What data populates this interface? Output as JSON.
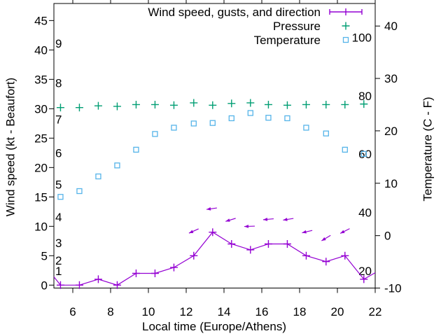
{
  "figure": {
    "background": "#ffffff",
    "axis_color": "#000000",
    "legend": {
      "position": "top-right",
      "items": [
        {
          "label": "Wind speed, gusts, and direction",
          "symbol": "errorbar-plus",
          "color": "#9400d3"
        },
        {
          "label": "Pressure",
          "symbol": "plus",
          "color": "#009e73"
        },
        {
          "label": "Temperature",
          "symbol": "open-square",
          "color": "#56b4e9"
        }
      ]
    }
  },
  "chart_data": {
    "type": "line",
    "title": "",
    "xlabel": "Local time (Europe/Athens)",
    "ylabel_left": "Wind speed (kt - Beaufort)",
    "ylabel_right": "Temperature (C - F)",
    "grid": false,
    "xlim": [
      5,
      22
    ],
    "x_ticks": [
      6,
      8,
      10,
      12,
      14,
      16,
      18,
      20,
      22
    ],
    "ylim_left": [
      -0.5,
      47.9
    ],
    "y_ticks_left": [
      0,
      5,
      10,
      15,
      20,
      25,
      30,
      35,
      40,
      45
    ],
    "ylim_right": [
      -10,
      44.3
    ],
    "y_ticks_right": [
      -10,
      0,
      10,
      20,
      30,
      40
    ],
    "beaufort_scale_labels": [
      {
        "label": "1",
        "kt": 2.4
      },
      {
        "label": "2",
        "kt": 4.2
      },
      {
        "label": "3",
        "kt": 7.2
      },
      {
        "label": "4",
        "kt": 11.6
      },
      {
        "label": "5",
        "kt": 17.1
      },
      {
        "label": "6",
        "kt": 22.5
      },
      {
        "label": "7",
        "kt": 28.2
      },
      {
        "label": "8",
        "kt": 34.4
      },
      {
        "label": "9",
        "kt": 41.1
      }
    ],
    "fahrenheit_scale_labels": [
      {
        "label": "20",
        "celsius": -6.7
      },
      {
        "label": "40",
        "celsius": 4.4
      },
      {
        "label": "60",
        "celsius": 15.6
      },
      {
        "label": "80",
        "celsius": 26.7
      },
      {
        "label": "100",
        "celsius": 37.8
      }
    ],
    "x_hours": [
      5.35,
      6.35,
      7.35,
      8.35,
      9.35,
      10.35,
      11.35,
      12.4,
      13.4,
      14.4,
      15.4,
      16.35,
      17.35,
      18.35,
      19.4,
      20.4,
      21.4
    ],
    "series": [
      {
        "name": "Wind speed",
        "axis": "left",
        "color": "#9400d3",
        "marker": "plus",
        "line": true,
        "values": [
          0,
          0,
          1,
          0,
          2,
          2,
          3,
          5,
          9,
          7,
          6,
          7,
          7,
          5,
          4,
          5,
          1
        ],
        "edge_clipped_points": [
          {
            "hour": 5.0,
            "value": 1.4
          },
          {
            "hour": 22.0,
            "value": 2.1
          }
        ]
      },
      {
        "name": "Pressure",
        "axis": "left",
        "color": "#009e73",
        "marker": "plus",
        "line": false,
        "values": [
          30.2,
          30.2,
          30.5,
          30.4,
          30.7,
          30.7,
          30.6,
          31.0,
          30.6,
          30.9,
          31.0,
          30.7,
          30.6,
          30.7,
          30.7,
          30.7,
          30.8
        ]
      },
      {
        "name": "Temperature",
        "axis": "right",
        "color": "#56b4e9",
        "marker": "open-square",
        "line": false,
        "values": [
          7.4,
          8.5,
          11.3,
          13.4,
          16.4,
          19.4,
          20.6,
          21.4,
          21.5,
          22.4,
          23.4,
          22.5,
          22.4,
          20.6,
          19.5,
          16.4,
          15.6
        ]
      }
    ],
    "wind_vectors": {
      "color": "#9400d3",
      "points": [
        {
          "hour": 12.4,
          "kt": 9.2,
          "angle_deg": 156
        },
        {
          "hour": 13.35,
          "kt": 13.0,
          "angle_deg": 172
        },
        {
          "hour": 14.35,
          "kt": 11.1,
          "angle_deg": 163
        },
        {
          "hour": 15.35,
          "kt": 10.0,
          "angle_deg": 178
        },
        {
          "hour": 16.35,
          "kt": 11.2,
          "angle_deg": 175
        },
        {
          "hour": 17.4,
          "kt": 11.2,
          "angle_deg": 171
        },
        {
          "hour": 18.4,
          "kt": 9.1,
          "angle_deg": 167
        },
        {
          "hour": 19.4,
          "kt": 8.0,
          "angle_deg": 149
        },
        {
          "hour": 20.4,
          "kt": 9.2,
          "angle_deg": 153
        }
      ]
    }
  }
}
